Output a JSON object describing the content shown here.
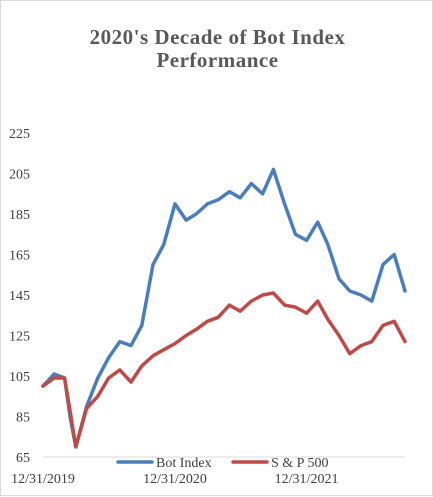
{
  "chart_data": {
    "type": "line",
    "title_lines": [
      "2020's Decade of Bot Index",
      "Performance"
    ],
    "xlabel": "",
    "ylabel": "",
    "x_ticks": [
      "12/31/2019",
      "12/31/2020",
      "12/31/2021"
    ],
    "x_range": [
      "2019-12-31",
      "2022-09-30"
    ],
    "ylim": [
      65,
      225
    ],
    "y_ticks": [
      65,
      85,
      105,
      125,
      145,
      165,
      185,
      205,
      225
    ],
    "grid": false,
    "legend_position": "bottom",
    "x": [
      "2019-12-31",
      "2020-01-31",
      "2020-02-29",
      "2020-03-15",
      "2020-03-31",
      "2020-04-30",
      "2020-05-31",
      "2020-06-30",
      "2020-07-31",
      "2020-08-31",
      "2020-09-30",
      "2020-10-31",
      "2020-11-30",
      "2020-12-31",
      "2021-01-31",
      "2021-02-28",
      "2021-03-31",
      "2021-04-30",
      "2021-05-31",
      "2021-06-30",
      "2021-07-31",
      "2021-08-31",
      "2021-09-30",
      "2021-10-31",
      "2021-11-30",
      "2021-12-31",
      "2022-01-31",
      "2022-02-28",
      "2022-03-31",
      "2022-04-30",
      "2022-05-31",
      "2022-06-30",
      "2022-07-31",
      "2022-08-31",
      "2022-09-30"
    ],
    "series": [
      {
        "name": "Bot Index",
        "color": "#4a7ebb",
        "values": [
          100,
          106,
          104,
          85,
          70,
          90,
          104,
          114,
          122,
          120,
          130,
          160,
          170,
          190,
          182,
          185,
          190,
          192,
          196,
          193,
          200,
          195,
          207,
          190,
          175,
          172,
          181,
          170,
          153,
          147,
          145,
          142,
          160,
          165,
          147
        ]
      },
      {
        "name": "S & P 500",
        "color": "#be4b48",
        "values": [
          100,
          104,
          104,
          88,
          70,
          89,
          95,
          104,
          108,
          102,
          110,
          115,
          118,
          121,
          125,
          128,
          132,
          134,
          140,
          137,
          142,
          145,
          146,
          140,
          139,
          136,
          142,
          133,
          125,
          116,
          120,
          122,
          130,
          132,
          122
        ]
      }
    ]
  }
}
